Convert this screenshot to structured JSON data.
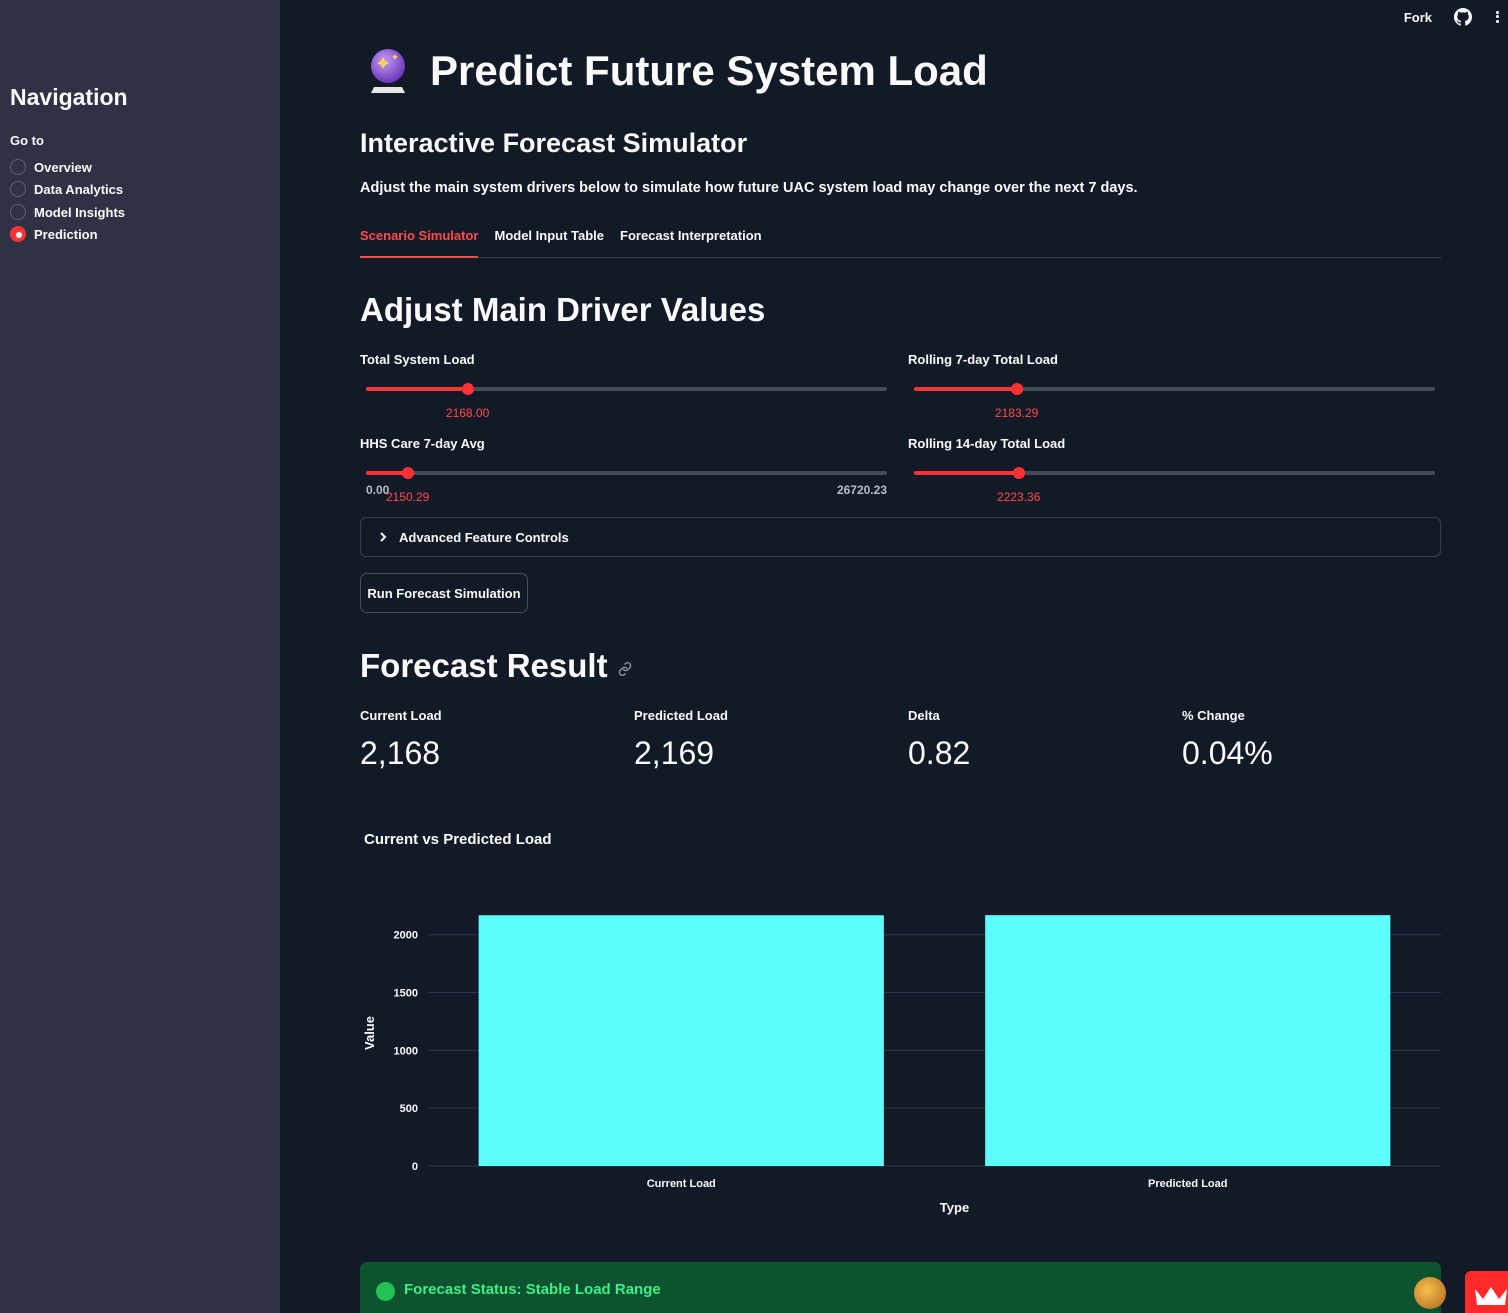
{
  "sidebar": {
    "title": "Navigation",
    "goto_label": "Go to",
    "items": [
      {
        "label": "Overview",
        "selected": false
      },
      {
        "label": "Data Analytics",
        "selected": false
      },
      {
        "label": "Model Insights",
        "selected": false
      },
      {
        "label": "Prediction",
        "selected": true
      }
    ]
  },
  "toolbar": {
    "fork_label": "Fork",
    "github_icon": "github-icon",
    "menu_icon": "kebab-menu-icon"
  },
  "header": {
    "title_icon": "crystal-ball-icon",
    "title": "Predict Future System Load",
    "subtitle": "Interactive Forecast Simulator",
    "description_prefix": "Adjust the main system drivers below to simulate how future UAC system load may change over the next ",
    "description_bold": "7 days."
  },
  "tabs": [
    {
      "label": "Scenario Simulator",
      "active": true
    },
    {
      "label": "Model Input Table",
      "active": false
    },
    {
      "label": "Forecast Interpretation",
      "active": false
    }
  ],
  "drivers": {
    "heading": "Adjust Main Driver Values",
    "sliders": [
      {
        "label": "Total System Load",
        "value": "2168.00",
        "fraction": 0.195
      },
      {
        "label": "Rolling 7-day Total Load",
        "value": "2183.29",
        "fraction": 0.197
      },
      {
        "label": "HHS Care 7-day Avg",
        "value": "2150.29",
        "fraction": 0.08,
        "min": "0.00",
        "max": "26720.23"
      },
      {
        "label": "Rolling 14-day Total Load",
        "value": "2223.36",
        "fraction": 0.201
      }
    ],
    "advanced_label": "Advanced Feature Controls",
    "run_button": "Run Forecast Simulation"
  },
  "result": {
    "heading": "Forecast Result",
    "metrics": [
      {
        "label": "Current Load",
        "value": "2,168"
      },
      {
        "label": "Predicted Load",
        "value": "2,169"
      },
      {
        "label": "Delta",
        "value": "0.82"
      },
      {
        "label": "% Change",
        "value": "0.04%"
      }
    ]
  },
  "chart_data": {
    "type": "bar",
    "title": "Current vs Predicted Load",
    "categories": [
      "Current Load",
      "Predicted Load"
    ],
    "values": [
      2168,
      2169
    ],
    "xlabel": "Type",
    "ylabel": "Value",
    "yticks": [
      0,
      500,
      1000,
      1500,
      2000
    ],
    "ylim": [
      0,
      2300
    ],
    "bar_color": "#5efdfd",
    "grid": true
  },
  "status": {
    "text": "Forecast Status: Stable Load Range",
    "color": "#3bf08a"
  },
  "colors": {
    "accent": "#ff4b4b",
    "sidebar_bg": "#2f3245",
    "main_bg": "#131a27"
  }
}
